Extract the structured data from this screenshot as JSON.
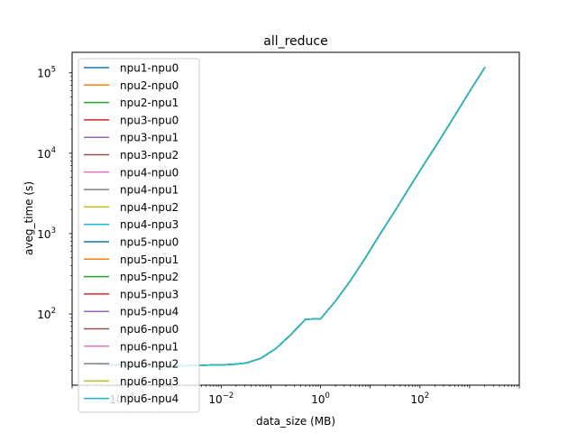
{
  "chart_data": {
    "type": "line",
    "title": "all_reduce",
    "xlabel": "data_size (MB)",
    "ylabel": "aveg_time (s)",
    "xscale": "log",
    "yscale": "log",
    "xlim": [
      1e-05,
      10000
    ],
    "ylim": [
      13,
      180000
    ],
    "xticks": [
      {
        "value": 0.0001,
        "base": "10",
        "exp": "−4"
      },
      {
        "value": 0.01,
        "base": "10",
        "exp": "−2"
      },
      {
        "value": 1,
        "base": "10",
        "exp": "0"
      },
      {
        "value": 100,
        "base": "10",
        "exp": "2"
      }
    ],
    "yticks": [
      {
        "value": 100,
        "base": "10",
        "exp": "2"
      },
      {
        "value": 1000,
        "base": "10",
        "exp": "3"
      },
      {
        "value": 10000,
        "base": "10",
        "exp": "4"
      },
      {
        "value": 100000,
        "base": "10",
        "exp": "5"
      }
    ],
    "legend_position": "upper-left",
    "x": [
      3.1e-05,
      6.1e-05,
      0.00012,
      0.00024,
      0.00049,
      0.00098,
      0.00195,
      0.0039,
      0.0078,
      0.0156,
      0.03125,
      0.0625,
      0.125,
      0.25,
      0.5,
      1,
      2,
      4,
      8,
      16,
      32,
      64,
      128,
      256,
      512,
      1024,
      2048
    ],
    "y": [
      23.5,
      23.3,
      23.0,
      22.5,
      22.4,
      22.6,
      22.8,
      23.0,
      23.2,
      23.5,
      24.5,
      28,
      37,
      55,
      86,
      87,
      145,
      260,
      500,
      1000,
      1950,
      3900,
      7700,
      15000,
      30000,
      60000,
      118000
    ],
    "series": [
      {
        "name": "npu1-npu0",
        "color": "#1f77b4"
      },
      {
        "name": "npu2-npu0",
        "color": "#ff7f0e"
      },
      {
        "name": "npu2-npu1",
        "color": "#2ca02c"
      },
      {
        "name": "npu3-npu0",
        "color": "#d62728"
      },
      {
        "name": "npu3-npu1",
        "color": "#9467bd"
      },
      {
        "name": "npu3-npu2",
        "color": "#8c564b"
      },
      {
        "name": "npu4-npu0",
        "color": "#e377c2"
      },
      {
        "name": "npu4-npu1",
        "color": "#7f7f7f"
      },
      {
        "name": "npu4-npu2",
        "color": "#bcbd22"
      },
      {
        "name": "npu4-npu3",
        "color": "#17becf"
      },
      {
        "name": "npu5-npu0",
        "color": "#1f77b4"
      },
      {
        "name": "npu5-npu1",
        "color": "#ff7f0e"
      },
      {
        "name": "npu5-npu2",
        "color": "#2ca02c"
      },
      {
        "name": "npu5-npu3",
        "color": "#d62728"
      },
      {
        "name": "npu5-npu4",
        "color": "#9467bd"
      },
      {
        "name": "npu6-npu0",
        "color": "#8c564b"
      },
      {
        "name": "npu6-npu1",
        "color": "#e377c2"
      },
      {
        "name": "npu6-npu2",
        "color": "#7f7f7f"
      },
      {
        "name": "npu6-npu3",
        "color": "#bcbd22"
      },
      {
        "name": "npu6-npu4",
        "color": "#17becf"
      }
    ]
  }
}
